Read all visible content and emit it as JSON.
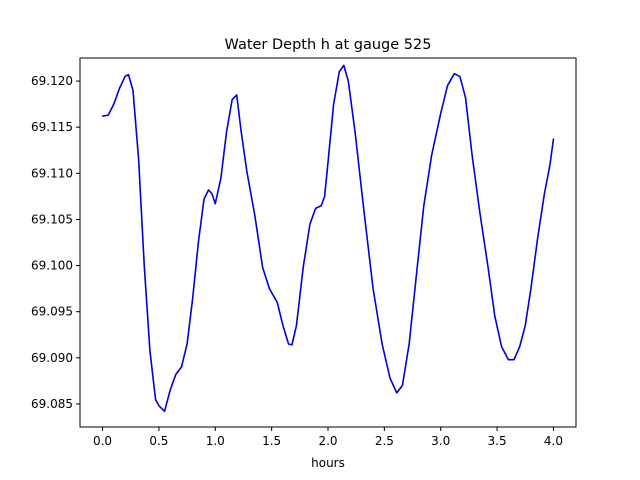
{
  "chart_data": {
    "type": "line",
    "title": "Water Depth h at gauge 525",
    "xlabel": "hours",
    "ylabel": "",
    "xlim": [
      -0.2,
      4.2
    ],
    "ylim": [
      69.0825,
      69.1225
    ],
    "xticks": [
      0.0,
      0.5,
      1.0,
      1.5,
      2.0,
      2.5,
      3.0,
      3.5,
      4.0
    ],
    "xtick_labels": [
      "0.0",
      "0.5",
      "1.0",
      "1.5",
      "2.0",
      "2.5",
      "3.0",
      "3.5",
      "4.0"
    ],
    "yticks": [
      69.085,
      69.09,
      69.095,
      69.1,
      69.105,
      69.11,
      69.115,
      69.12
    ],
    "ytick_labels": [
      "69.085",
      "69.090",
      "69.095",
      "69.100",
      "69.105",
      "69.110",
      "69.115",
      "69.120"
    ],
    "grid": false,
    "series": [
      {
        "color": "#0000dd",
        "x": [
          0.0,
          0.05,
          0.1,
          0.15,
          0.2,
          0.23,
          0.27,
          0.32,
          0.37,
          0.42,
          0.47,
          0.5,
          0.55,
          0.6,
          0.65,
          0.7,
          0.75,
          0.8,
          0.85,
          0.9,
          0.94,
          0.97,
          1.0,
          1.05,
          1.1,
          1.15,
          1.19,
          1.23,
          1.28,
          1.35,
          1.42,
          1.48,
          1.55,
          1.6,
          1.65,
          1.68,
          1.72,
          1.78,
          1.84,
          1.89,
          1.94,
          1.97,
          2.0,
          2.05,
          2.1,
          2.14,
          2.18,
          2.24,
          2.32,
          2.4,
          2.48,
          2.55,
          2.61,
          2.66,
          2.72,
          2.78,
          2.85,
          2.92,
          3.0,
          3.06,
          3.12,
          3.17,
          3.22,
          3.28,
          3.35,
          3.42,
          3.48,
          3.54,
          3.6,
          3.65,
          3.7,
          3.75,
          3.8,
          3.86,
          3.92,
          3.97,
          4.0
        ],
        "y": [
          69.1162,
          69.1163,
          69.1175,
          69.1192,
          69.1205,
          69.1207,
          69.119,
          69.1115,
          69.1,
          69.0908,
          69.0855,
          69.0848,
          69.0842,
          69.0865,
          69.0882,
          69.089,
          69.0915,
          69.0965,
          69.1025,
          69.1072,
          69.1082,
          69.1078,
          69.1067,
          69.1095,
          69.1145,
          69.118,
          69.1185,
          69.1145,
          69.1102,
          69.1055,
          69.0998,
          69.0975,
          69.096,
          69.0935,
          69.0915,
          69.0914,
          69.0935,
          69.0998,
          69.1045,
          69.1062,
          69.1065,
          69.1075,
          69.1112,
          69.1175,
          69.121,
          69.1217,
          69.12,
          69.1145,
          69.1058,
          69.0975,
          69.0915,
          69.0878,
          69.0862,
          69.087,
          69.0915,
          69.0985,
          69.1065,
          69.112,
          69.1165,
          69.1195,
          69.1208,
          69.1205,
          69.1182,
          69.1118,
          69.1055,
          69.0998,
          69.0945,
          69.0912,
          69.0898,
          69.0898,
          69.0912,
          69.0935,
          69.0975,
          69.103,
          69.1078,
          69.111,
          69.1137
        ]
      }
    ]
  }
}
